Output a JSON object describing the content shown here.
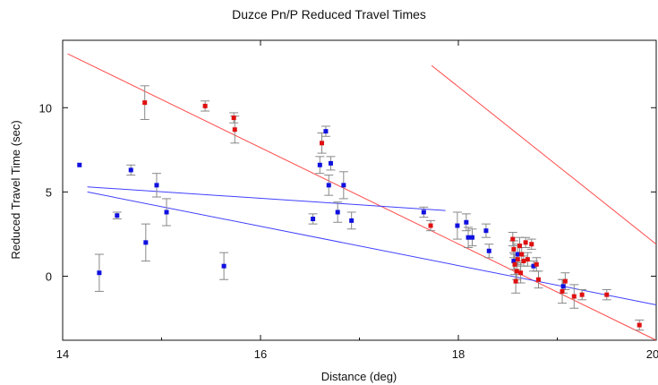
{
  "chart_data": {
    "type": "scatter",
    "title": "Duzce Pn/P Reduced Travel Times",
    "xlabel": "Distance (deg)",
    "ylabel": "Reduced Travel Time (sec)",
    "xlim": [
      14,
      20
    ],
    "ylim": [
      -3.8,
      14
    ],
    "x_ticks": [
      14,
      16,
      18,
      20
    ],
    "x_tick_labels": [
      "14",
      "16",
      "18",
      "20"
    ],
    "y_ticks": [
      0,
      5,
      10
    ],
    "y_tick_labels": [
      "0",
      "5",
      "10"
    ],
    "grid": false,
    "legend": "none",
    "series": [
      {
        "color": "#1010e0",
        "points": [
          {
            "x": 14.17,
            "y": 6.6,
            "err": 0
          },
          {
            "x": 14.37,
            "y": 0.2,
            "err": 1.1
          },
          {
            "x": 14.55,
            "y": 3.6,
            "err": 0.2
          },
          {
            "x": 14.69,
            "y": 6.3,
            "err": 0.3
          },
          {
            "x": 14.84,
            "y": 2.0,
            "err": 1.1
          },
          {
            "x": 14.95,
            "y": 5.4,
            "err": 0.7
          },
          {
            "x": 15.05,
            "y": 3.8,
            "err": 0.8
          },
          {
            "x": 15.63,
            "y": 0.6,
            "err": 0.8
          },
          {
            "x": 16.53,
            "y": 3.4,
            "err": 0.3
          },
          {
            "x": 16.6,
            "y": 6.6,
            "err": 0.5
          },
          {
            "x": 16.66,
            "y": 8.6,
            "err": 0.3
          },
          {
            "x": 16.69,
            "y": 5.4,
            "err": 0.6
          },
          {
            "x": 16.71,
            "y": 6.7,
            "err": 0.4
          },
          {
            "x": 16.78,
            "y": 3.8,
            "err": 0.6
          },
          {
            "x": 16.84,
            "y": 5.4,
            "err": 0.8
          },
          {
            "x": 16.92,
            "y": 3.3,
            "err": 0.5
          },
          {
            "x": 17.65,
            "y": 3.8,
            "err": 0.3
          },
          {
            "x": 17.99,
            "y": 3.0,
            "err": 0.8
          },
          {
            "x": 18.08,
            "y": 3.2,
            "err": 0.5
          },
          {
            "x": 18.1,
            "y": 2.3,
            "err": 0.6
          },
          {
            "x": 18.14,
            "y": 2.3,
            "err": 0.5
          },
          {
            "x": 18.28,
            "y": 2.7,
            "err": 0.4
          },
          {
            "x": 18.31,
            "y": 1.5,
            "err": 0.4
          },
          {
            "x": 18.56,
            "y": 0.9,
            "err": 0.5
          },
          {
            "x": 18.6,
            "y": 1.3,
            "err": 0.6
          },
          {
            "x": 18.76,
            "y": 0.6,
            "err": 0.3
          },
          {
            "x": 19.06,
            "y": -0.6,
            "err": 0.4
          }
        ]
      },
      {
        "color": "#e01010",
        "points": [
          {
            "x": 14.83,
            "y": 10.3,
            "err": 1.0
          },
          {
            "x": 15.44,
            "y": 10.1,
            "err": 0.3
          },
          {
            "x": 15.73,
            "y": 9.4,
            "err": 0.3
          },
          {
            "x": 15.74,
            "y": 8.7,
            "err": 0.8
          },
          {
            "x": 16.62,
            "y": 7.9,
            "err": 0.6
          },
          {
            "x": 17.72,
            "y": 3.0,
            "err": 0.3
          },
          {
            "x": 18.55,
            "y": 2.2,
            "err": 0.4
          },
          {
            "x": 18.56,
            "y": 1.6,
            "err": 0.5
          },
          {
            "x": 18.57,
            "y": 0.7,
            "err": 0.6
          },
          {
            "x": 18.58,
            "y": -0.3,
            "err": 0.7
          },
          {
            "x": 18.59,
            "y": 0.3,
            "err": 0.5
          },
          {
            "x": 18.6,
            "y": 1.0,
            "err": 0.4
          },
          {
            "x": 18.62,
            "y": 1.8,
            "err": 0.5
          },
          {
            "x": 18.63,
            "y": 0.2,
            "err": 0.6
          },
          {
            "x": 18.64,
            "y": 1.3,
            "err": 0.4
          },
          {
            "x": 18.66,
            "y": 0.9,
            "err": 0.3
          },
          {
            "x": 18.68,
            "y": 2.0,
            "err": 0.3
          },
          {
            "x": 18.7,
            "y": 1.0,
            "err": 0.4
          },
          {
            "x": 18.74,
            "y": 1.9,
            "err": 0.3
          },
          {
            "x": 18.79,
            "y": 0.7,
            "err": 0.4
          },
          {
            "x": 18.81,
            "y": -0.2,
            "err": 0.5
          },
          {
            "x": 19.05,
            "y": -0.9,
            "err": 0.7
          },
          {
            "x": 19.08,
            "y": -0.3,
            "err": 0.5
          },
          {
            "x": 19.17,
            "y": -1.2,
            "err": 0.7
          },
          {
            "x": 19.25,
            "y": -1.1,
            "err": 0.3
          },
          {
            "x": 19.5,
            "y": -1.1,
            "err": 0.3
          },
          {
            "x": 19.83,
            "y": -2.9,
            "err": 0.3
          }
        ]
      }
    ],
    "fit_lines": [
      {
        "color": "#ff4a4a",
        "x": [
          14.05,
          20.0
        ],
        "y": [
          13.2,
          -3.8
        ]
      },
      {
        "color": "#ff4a4a",
        "x": [
          17.73,
          20.0
        ],
        "y": [
          12.5,
          1.9
        ]
      },
      {
        "color": "#4040ff",
        "x": [
          14.25,
          17.87
        ],
        "y": [
          5.3,
          3.9
        ]
      },
      {
        "color": "#4040ff",
        "x": [
          14.25,
          20.0
        ],
        "y": [
          5.0,
          -1.7
        ]
      }
    ]
  }
}
